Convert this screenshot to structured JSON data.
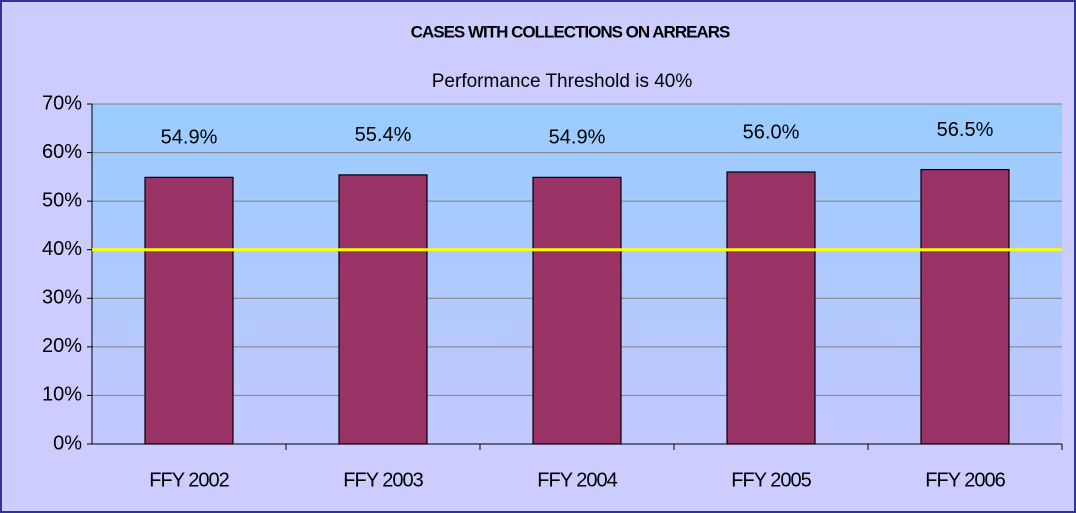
{
  "chart_data": {
    "type": "bar",
    "title": "CASES WITH COLLECTIONS ON ARREARS",
    "subtitle": "Performance Threshold is 40%",
    "categories": [
      "FFY 2002",
      "FFY 2003",
      "FFY 2004",
      "FFY 2005",
      "FFY 2006"
    ],
    "values": [
      54.9,
      55.4,
      54.9,
      56.0,
      56.5
    ],
    "value_labels": [
      "54.9%",
      "55.4%",
      "54.9%",
      "56.0%",
      "56.5%"
    ],
    "color": "#993366",
    "ylim": [
      0,
      70
    ],
    "yticks": [
      {
        "value": 0,
        "label": "0%"
      },
      {
        "value": 10,
        "label": "10%"
      },
      {
        "value": 20,
        "label": "20%"
      },
      {
        "value": 30,
        "label": "30%"
      },
      {
        "value": 40,
        "label": "40%"
      },
      {
        "value": 50,
        "label": "50%"
      },
      {
        "value": 60,
        "label": "60%"
      },
      {
        "value": 70,
        "label": "70%"
      }
    ],
    "grid": true,
    "threshold": {
      "value": 40,
      "color": "#ffff00"
    }
  }
}
